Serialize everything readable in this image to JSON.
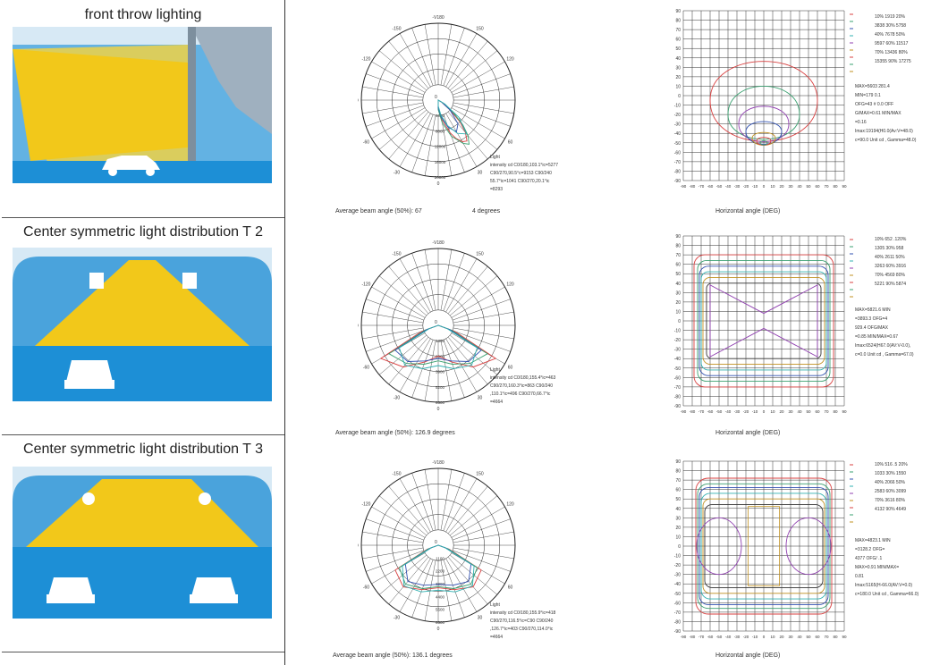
{
  "rows": [
    {
      "title": "front throw lighting",
      "polar_caption": "Average beam angle (50%): 67",
      "polar_note": "4 degrees",
      "polar_stats": [
        "Light",
        "intensity cd C0/180,103.1°ic=5277",
        "C90/270,90.5°c=9153 C90/240",
        "55.7°ic=1041 C90/270,20.1°ic",
        "=8293"
      ],
      "grid_caption": "Horizontal angle (DEG)",
      "grid_legend": [
        "10% 1919 20%",
        "3838 30% 5758",
        "40% 7678 50%",
        "9597 60% 11517",
        "70% 13436 80%",
        "15355 90% 17275"
      ],
      "grid_stats": [
        "MAX=5603 281.4",
        "MIN=179 0.1",
        "OFG=43 # 0.0 OFF",
        "G/MAX=0.61 MIN/MAX",
        "=0.16",
        "",
        "Imax:19194(H0.0(Av:V=48.0)",
        "c=90.0 Unit cd , Gamma=48.0)"
      ]
    },
    {
      "title": "Center symmetric light distribution T 2",
      "polar_caption": "Average beam angle (50%): 126.9 degrees",
      "polar_note": "",
      "polar_stats": [
        "Light",
        "intensity cd C0/180,155.4°ic=463",
        "C90/270,160.3°ic=863 C90/240",
        ",110.1°ic=496 C90/270,66.7°ic",
        "=4664"
      ],
      "grid_caption": "Horizontal angle (DEG)",
      "grid_legend": [
        "10% 652 .120%",
        "1305 30% 958",
        "40% 2611 50%",
        "3263 60% 3916",
        "70% 4569 80%",
        "5221 90% 5874"
      ],
      "grid_stats": [
        "MAX=5821.6 MIN",
        "=3893.3 OFG=4",
        "929.4 OFG/MAX",
        "=0.85 MIN/MAX=0.67",
        "",
        "Imax:6524(H67.0(AV:V-0.0),",
        "c=0.0 Unit cd , Gamma=67.0)"
      ]
    },
    {
      "title": "Center symmetric light distribution T 3",
      "polar_caption": "Average beam angle (50%): 136.1 degrees",
      "polar_note": "",
      "polar_stats": [
        "Light",
        "intensity cd C0/180,155.9°ic=418",
        "C90/270,116.5°ic=C90 C90/240",
        ",126.7°ic=403 C90/270,114.0°ic",
        "=4664"
      ],
      "grid_caption": "Horizontal angle (DEG)",
      "grid_legend": [
        "10% 516 .5 20%",
        "1033 30% 1550",
        "40% 2066 50%",
        "2583 60% 3099",
        "70% 3616 80%",
        "4132 90% 4649"
      ],
      "grid_stats": [
        "MAX=4823.1 MIN",
        "=3128.2 OFG=",
        "4377 OFG/ .1",
        "MAX=0.91 MIN/MAX=",
        "0.81",
        "",
        "Imax:5165(H-66.0(AV:V=0.0)",
        "c=180.0 Unit cd , Gamma=66.0)"
      ]
    }
  ],
  "polar_axis": {
    "top": "-V180",
    "angles": [
      "-150",
      "150",
      "-120",
      "120",
      "-90",
      "90",
      "-60",
      "60",
      "-30",
      "30",
      "0"
    ],
    "center": "0"
  },
  "grid_axis": {
    "y_ticks": [
      "90",
      "80",
      "70",
      "60",
      "50",
      "40",
      "30",
      "20",
      "10",
      "0",
      "-10",
      "-20",
      "-30",
      "-40",
      "-50",
      "-60",
      "-70",
      "-80",
      "-90"
    ],
    "x_ticks": [
      "-90",
      "-80",
      "-70",
      "-60",
      "-50",
      "-40",
      "-30",
      "-20",
      "-10",
      "0",
      "10",
      "20",
      "30",
      "40",
      "50",
      "60",
      "70",
      "80",
      "90"
    ]
  },
  "chart_data": [
    {
      "type": "polar",
      "panel": "row-1-polar",
      "caption": "Average beam angle (50%): 67",
      "radial_ticks": [
        "4000",
        "8000",
        "12000",
        "16000",
        "20000"
      ],
      "rlim": [
        0,
        20000
      ],
      "series": [
        {
          "color": "#d94040",
          "angles_deg": [
            0,
            10,
            20,
            25,
            30,
            35,
            40,
            45,
            50,
            60
          ],
          "values": [
            2000,
            5000,
            9000,
            11000,
            12500,
            13000,
            11000,
            8000,
            4000,
            1000
          ]
        },
        {
          "color": "#3aa070",
          "angles_deg": [
            0,
            10,
            20,
            30,
            35,
            40,
            45,
            50,
            60
          ],
          "values": [
            2500,
            6000,
            10000,
            13000,
            14000,
            12000,
            9000,
            5000,
            1500
          ]
        },
        {
          "color": "#3050b0",
          "angles_deg": [
            0,
            10,
            20,
            30,
            40,
            50,
            60
          ],
          "values": [
            2000,
            4500,
            7500,
            9500,
            8000,
            4000,
            1000
          ]
        },
        {
          "color": "#30b0b0",
          "angles_deg": [
            0,
            10,
            20,
            30,
            40,
            50,
            60
          ],
          "values": [
            1500,
            4000,
            7000,
            10000,
            11500,
            7000,
            2000
          ]
        }
      ]
    },
    {
      "type": "polar",
      "panel": "row-2-polar",
      "caption": "Average beam angle (50%): 126.9 degrees",
      "radial_ticks": [
        "1300",
        "2600",
        "3900",
        "5200",
        "6500"
      ],
      "rlim": [
        0,
        6500
      ],
      "series": [
        {
          "color": "#d94040",
          "angles_deg": [
            -70,
            -60,
            -40,
            -20,
            0,
            20,
            40,
            60,
            70
          ],
          "values": [
            1500,
            5600,
            4600,
            3300,
            2600,
            3300,
            4600,
            5600,
            1500
          ]
        },
        {
          "color": "#3aa070",
          "angles_deg": [
            -70,
            -60,
            -40,
            -20,
            0,
            20,
            40,
            60,
            70
          ],
          "values": [
            1200,
            4800,
            4200,
            3500,
            3000,
            3500,
            4200,
            4800,
            1200
          ]
        },
        {
          "color": "#3050b0",
          "angles_deg": [
            -70,
            -60,
            -40,
            -20,
            0,
            20,
            40,
            60,
            70
          ],
          "values": [
            1000,
            4200,
            4000,
            3200,
            2800,
            3200,
            4000,
            4200,
            1000
          ]
        },
        {
          "color": "#30b0b0",
          "angles_deg": [
            -70,
            -60,
            -40,
            -20,
            0,
            20,
            40,
            60,
            70
          ],
          "values": [
            800,
            3800,
            4400,
            3900,
            3400,
            3900,
            4400,
            3800,
            800
          ]
        }
      ]
    },
    {
      "type": "polar",
      "panel": "row-3-polar",
      "caption": "Average beam angle (50%): 136.1 degrees",
      "radial_ticks": [
        "1100",
        "2200",
        "3300",
        "4400",
        "5500",
        "6500"
      ],
      "rlim": [
        0,
        6500
      ],
      "series": [
        {
          "color": "#d94040",
          "angles_deg": [
            -70,
            -60,
            -40,
            -20,
            0,
            20,
            40,
            60,
            70
          ],
          "values": [
            1000,
            4200,
            4600,
            4000,
            3600,
            4000,
            4600,
            4200,
            1000
          ]
        },
        {
          "color": "#3aa070",
          "angles_deg": [
            -70,
            -60,
            -40,
            -20,
            0,
            20,
            40,
            60,
            70
          ],
          "values": [
            900,
            3800,
            4300,
            3900,
            3500,
            3900,
            4300,
            3800,
            900
          ]
        },
        {
          "color": "#3050b0",
          "angles_deg": [
            -70,
            -60,
            -40,
            -20,
            0,
            20,
            40,
            60,
            70
          ],
          "values": [
            700,
            3200,
            4000,
            3600,
            3300,
            3600,
            4000,
            3200,
            700
          ]
        },
        {
          "color": "#30b0b0",
          "angles_deg": [
            -70,
            -60,
            -40,
            -20,
            0,
            20,
            40,
            60,
            70
          ],
          "values": [
            600,
            3500,
            4500,
            4200,
            3800,
            4200,
            4500,
            3500,
            600
          ]
        }
      ]
    },
    {
      "type": "contour",
      "panel": "row-1-grid",
      "xlabel": "Horizontal angle (DEG)",
      "xlim": [
        -90,
        90
      ],
      "ylim": [
        -90,
        90
      ],
      "contours": [
        {
          "color": "#d94040",
          "kind": "blob",
          "cx": 0,
          "cy": -5,
          "rx": 60,
          "ry_top": 55,
          "ry_bottom": 58
        },
        {
          "color": "#3aa070",
          "kind": "blob",
          "cx": 0,
          "cy": -20,
          "rx": 40,
          "ry_top": 40,
          "ry_bottom": 35
        },
        {
          "color": "#9040b0",
          "kind": "blob",
          "cx": 0,
          "cy": -30,
          "rx": 28,
          "ry_top": 25,
          "ry_bottom": 25
        },
        {
          "color": "#3050b0",
          "kind": "blob",
          "cx": 0,
          "cy": -38,
          "rx": 20,
          "ry_top": 14,
          "ry_bottom": 18
        },
        {
          "color": "#c09020",
          "kind": "blob",
          "cx": 0,
          "cy": -45,
          "rx": 13,
          "ry_top": 8,
          "ry_bottom": 10
        },
        {
          "color": "#d94040",
          "kind": "blob",
          "cx": 0,
          "cy": -48,
          "rx": 8,
          "ry_top": 5,
          "ry_bottom": 6
        },
        {
          "color": "#3aa070",
          "kind": "blob",
          "cx": 0,
          "cy": -50,
          "rx": 4,
          "ry_top": 3,
          "ry_bottom": 3
        }
      ]
    },
    {
      "type": "contour",
      "panel": "row-2-grid",
      "xlabel": "Horizontal angle (DEG)",
      "xlim": [
        -90,
        90
      ],
      "ylim": [
        -90,
        90
      ],
      "contours": [
        {
          "color": "#d94040",
          "kind": "rect",
          "hw": 78,
          "hh": 70,
          "r": 12
        },
        {
          "color": "#3aa070",
          "kind": "rect",
          "hw": 74,
          "hh": 64,
          "r": 10
        },
        {
          "color": "#3050b0",
          "kind": "rect",
          "hw": 72,
          "hh": 58,
          "r": 10
        },
        {
          "color": "#30b0b0",
          "kind": "rect",
          "hw": 70,
          "hh": 52,
          "r": 8
        },
        {
          "color": "#c09020",
          "kind": "rect",
          "hw": 68,
          "hh": 46,
          "r": 8
        },
        {
          "color": "#9040b0",
          "kind": "xshape",
          "hw": 60,
          "hh": 38
        },
        {
          "color": "#333333",
          "kind": "rect",
          "hw": 64,
          "hh": 40,
          "r": 6
        }
      ]
    },
    {
      "type": "contour",
      "panel": "row-3-grid",
      "xlabel": "Horizontal angle (DEG)",
      "xlim": [
        -90,
        90
      ],
      "ylim": [
        -90,
        90
      ],
      "contours": [
        {
          "color": "#d94040",
          "kind": "rect",
          "hw": 76,
          "hh": 72,
          "r": 14
        },
        {
          "color": "#3aa070",
          "kind": "rect",
          "hw": 74,
          "hh": 66,
          "r": 12
        },
        {
          "color": "#3050b0",
          "kind": "rect",
          "hw": 72,
          "hh": 62,
          "r": 10
        },
        {
          "color": "#30b0b0",
          "kind": "rect",
          "hw": 70,
          "hh": 56,
          "r": 10
        },
        {
          "color": "#c09020",
          "kind": "rect",
          "hw": 68,
          "hh": 50,
          "r": 8
        },
        {
          "color": "#333333",
          "kind": "rect",
          "hw": 66,
          "hh": 44,
          "r": 8
        },
        {
          "color": "#9040b0",
          "kind": "lobes",
          "hw": 50,
          "hh": 30
        }
      ]
    }
  ],
  "colors": {
    "sky": "#4aa3dc",
    "beam": "#f2c81a",
    "ground": "#1d8fd6",
    "panel_bg": "#d7e9f5"
  }
}
